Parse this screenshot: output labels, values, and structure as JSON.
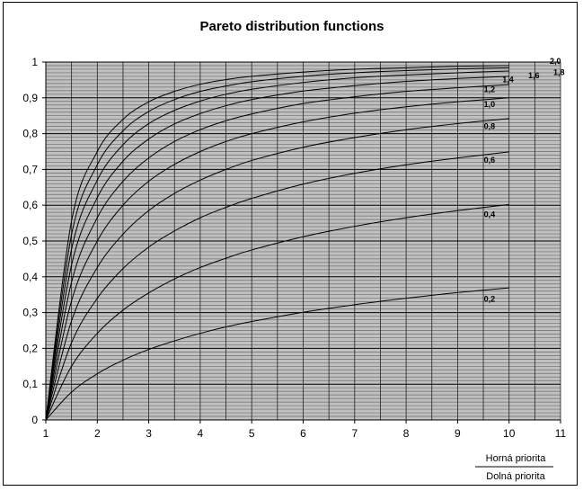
{
  "chart_data": {
    "type": "line",
    "title": "Pareto distribution functions",
    "xlabel": "",
    "ylabel": "",
    "xlim": [
      1,
      11
    ],
    "ylim": [
      0,
      1
    ],
    "x_ticks": [
      "1",
      "2",
      "3",
      "4",
      "5",
      "6",
      "7",
      "8",
      "9",
      "10",
      "11"
    ],
    "y_ticks": [
      "0",
      "0,1",
      "0,2",
      "0,3",
      "0,4",
      "0,5",
      "0,6",
      "0,7",
      "0,8",
      "0,9",
      "1"
    ],
    "grid": true,
    "x": [
      1,
      1.5,
      2,
      2.5,
      3,
      3.5,
      4,
      4.5,
      5,
      6,
      7,
      8,
      9,
      10
    ],
    "series": [
      {
        "name": "0,2",
        "values": [
          0,
          0.078,
          0.129,
          0.167,
          0.197,
          0.221,
          0.242,
          0.26,
          0.275,
          0.301,
          0.322,
          0.34,
          0.356,
          0.369
        ]
      },
      {
        "name": "0,4",
        "values": [
          0,
          0.15,
          0.242,
          0.307,
          0.355,
          0.394,
          0.426,
          0.452,
          0.475,
          0.512,
          0.541,
          0.565,
          0.585,
          0.602
        ]
      },
      {
        "name": "0,6",
        "values": [
          0,
          0.216,
          0.34,
          0.423,
          0.483,
          0.528,
          0.565,
          0.594,
          0.619,
          0.659,
          0.689,
          0.713,
          0.732,
          0.749
        ]
      },
      {
        "name": "0,8",
        "values": [
          0,
          0.277,
          0.426,
          0.519,
          0.585,
          0.633,
          0.67,
          0.7,
          0.725,
          0.762,
          0.789,
          0.811,
          0.828,
          0.842
        ]
      },
      {
        "name": "1,0",
        "values": [
          0,
          0.333,
          0.5,
          0.6,
          0.667,
          0.714,
          0.75,
          0.778,
          0.8,
          0.833,
          0.857,
          0.875,
          0.889,
          0.9
        ]
      },
      {
        "name": "1,2",
        "values": [
          0,
          0.385,
          0.565,
          0.667,
          0.732,
          0.778,
          0.811,
          0.836,
          0.855,
          0.884,
          0.903,
          0.918,
          0.928,
          0.937
        ]
      },
      {
        "name": "1,4",
        "values": [
          0,
          0.433,
          0.621,
          0.723,
          0.785,
          0.827,
          0.856,
          0.878,
          0.895,
          0.919,
          0.934,
          0.946,
          0.954,
          0.96
        ]
      },
      {
        "name": "1,6",
        "values": [
          0,
          0.477,
          0.67,
          0.769,
          0.828,
          0.865,
          0.891,
          0.91,
          0.924,
          0.943,
          0.956,
          0.964,
          0.97,
          0.975
        ]
      },
      {
        "name": "1,8",
        "values": [
          0,
          0.518,
          0.713,
          0.808,
          0.862,
          0.895,
          0.918,
          0.933,
          0.945,
          0.96,
          0.97,
          0.976,
          0.981,
          0.984
        ]
      },
      {
        "name": "2,0",
        "values": [
          0,
          0.556,
          0.75,
          0.84,
          0.889,
          0.918,
          0.938,
          0.951,
          0.96,
          0.972,
          0.98,
          0.984,
          0.988,
          0.99
        ]
      }
    ],
    "curve_labels": [
      "0,2",
      "0,4",
      "0,6",
      "0,8",
      "1,0",
      "1,2",
      "1,4",
      "1,6",
      "1,8",
      "2,0"
    ],
    "legend": {
      "top": "Horná priorita",
      "bottom": "Dolná priorita",
      "placement": "bottom-right"
    }
  }
}
